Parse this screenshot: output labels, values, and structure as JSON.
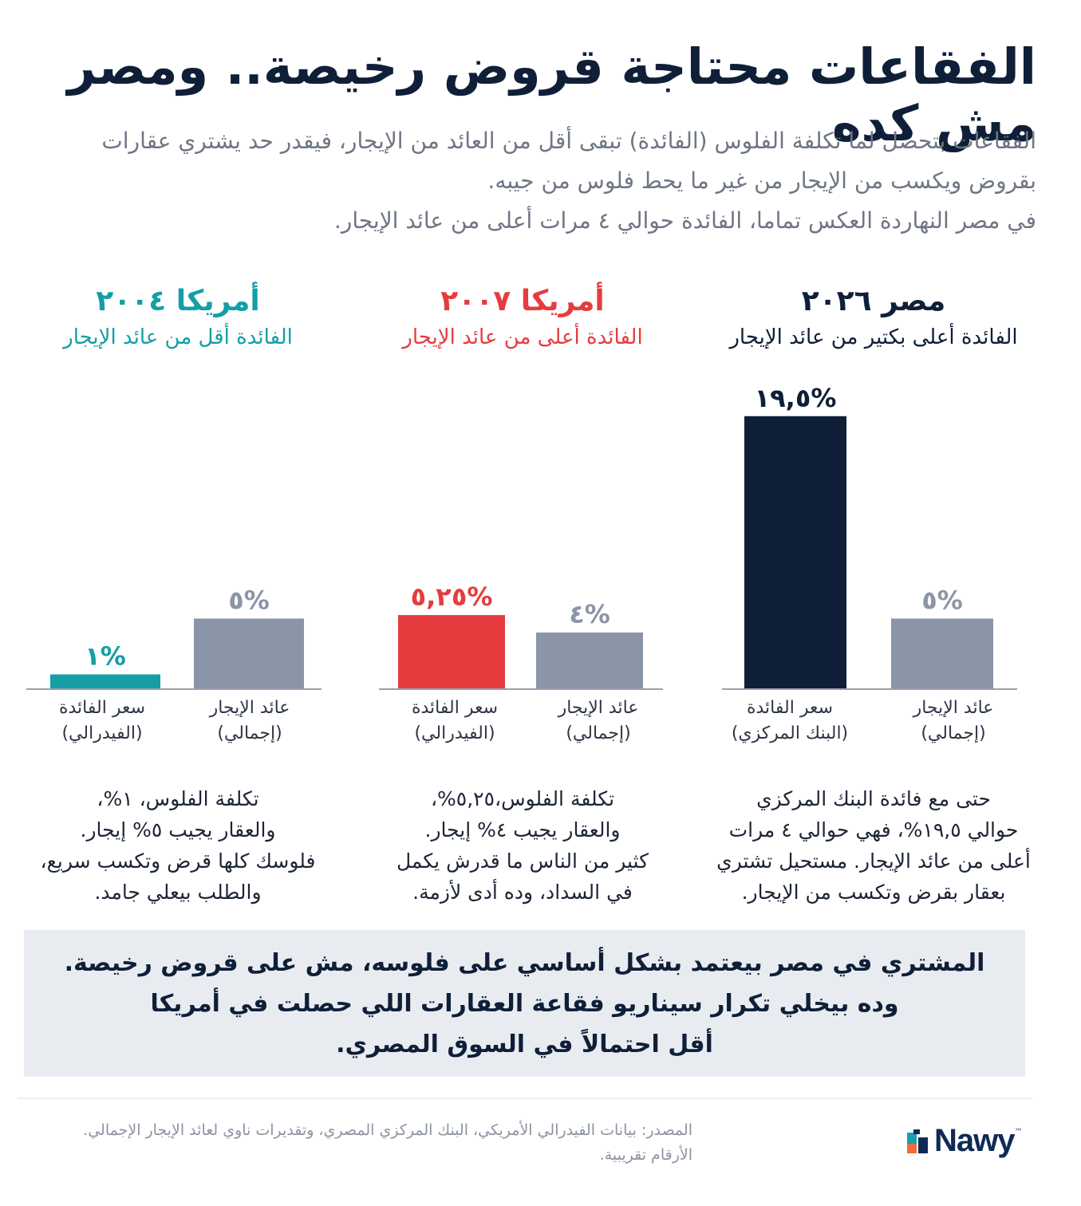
{
  "title": "الفقاعات محتاجة قروض رخيصة.. ومصر مش كده",
  "subtitle": {
    "line1": "الفقاعات بتحصل لما تكلفة الفلوس (الفائدة) تبقى أقل من العائد من الإيجار، فيقدر حد يشتري عقارات",
    "line2": "بقروض ويكسب من الإيجار من غير ما يحط فلوس من جيبه.",
    "line3": "في مصر النهاردة العكس تماما، الفائدة حوالي ٤ مرات أعلى من عائد الإيجار."
  },
  "colors": {
    "navy": "#0f1f38",
    "gray_bar": "#8b95a8",
    "red": "#e63c3f",
    "teal": "#149ea6",
    "baseline": "#9aa1ad"
  },
  "panels": {
    "egypt": {
      "title": "مصر ٢٠٢٦",
      "subtitle": "الفائدة أعلى بكتير من عائد الإيجار",
      "desc": [
        "حتى مع فائدة البنك المركزي",
        "حوالي ١٩,٥%، فهي حوالي ٤ مرات",
        "أعلى من عائد الإيجار. مستحيل تشتري",
        "بعقار بقرض وتكسب من الإيجار."
      ]
    },
    "us2007": {
      "title": "أمريكا ٢٠٠٧",
      "subtitle": "الفائدة أعلى من عائد الإيجار",
      "desc": [
        "تكلفة الفلوس،٥,٢٥%،",
        "والعقار يجيب ٤% إيجار.",
        "كثير من الناس ما قدرش يكمل",
        "في السداد، وده أدى لأزمة."
      ]
    },
    "us2004": {
      "title": "أمريكا ٢٠٠٤",
      "subtitle": "الفائدة أقل من عائد الإيجار",
      "desc": [
        "تكلفة الفلوس، ١%،",
        "والعقار يجيب ٥% إيجار.",
        "فلوسك كلها قرض وتكسب سريع،",
        "والطلب بيعلي جامد."
      ]
    }
  },
  "chart_data": [
    {
      "type": "bar",
      "title": "مصر ٢٠٢٦",
      "subtitle": "الفائدة أعلى بكتير من عائد الإيجار",
      "bars": [
        {
          "label_1": "عائد الإيجار",
          "label_2": "(إجمالي)",
          "value": 5,
          "value_label": "٥%",
          "color": "#8b95a8"
        },
        {
          "label_1": "سعر الفائدة",
          "label_2": "(البنك المركزي)",
          "value": 19.5,
          "value_label": "١٩,٥%",
          "color": "#0f1f38"
        }
      ]
    },
    {
      "type": "bar",
      "title": "أمريكا ٢٠٠٧",
      "subtitle": "الفائدة أعلى من عائد الإيجار",
      "bars": [
        {
          "label_1": "عائد الإيجار",
          "label_2": "(إجمالي)",
          "value": 4,
          "value_label": "٤%",
          "color": "#8b95a8"
        },
        {
          "label_1": "سعر الفائدة",
          "label_2": "(الفيدرالي)",
          "value": 5.25,
          "value_label": "٥,٢٥%",
          "color": "#e63c3f"
        }
      ]
    },
    {
      "type": "bar",
      "title": "أمريكا ٢٠٠٤",
      "subtitle": "الفائدة أقل من عائد الإيجار",
      "bars": [
        {
          "label_1": "عائد الإيجار",
          "label_2": "(إجمالي)",
          "value": 5,
          "value_label": "٥%",
          "color": "#8b95a8"
        },
        {
          "label_1": "سعر الفائدة",
          "label_2": "(الفيدرالي)",
          "value": 1,
          "value_label": "١%",
          "color": "#149ea6"
        }
      ]
    }
  ],
  "conclusion": {
    "line1": "المشتري في مصر بيعتمد بشكل أساسي على فلوسه، مش على قروض رخيصة.",
    "line2": "وده بيخلي تكرار سيناريو فقاعة العقارات اللي حصلت في أمريكا",
    "line3": "أقل احتمالاً في السوق المصري."
  },
  "footer": {
    "source_line1": "المصدر: بيانات الفيدرالي الأمريكي، البنك المركزي المصري، وتقديرات ناوي لعائد الإيجار الإجمالي.",
    "source_line2": "الأرقام تقريبية.",
    "brand": "Nawy",
    "brand_tm": "™"
  }
}
